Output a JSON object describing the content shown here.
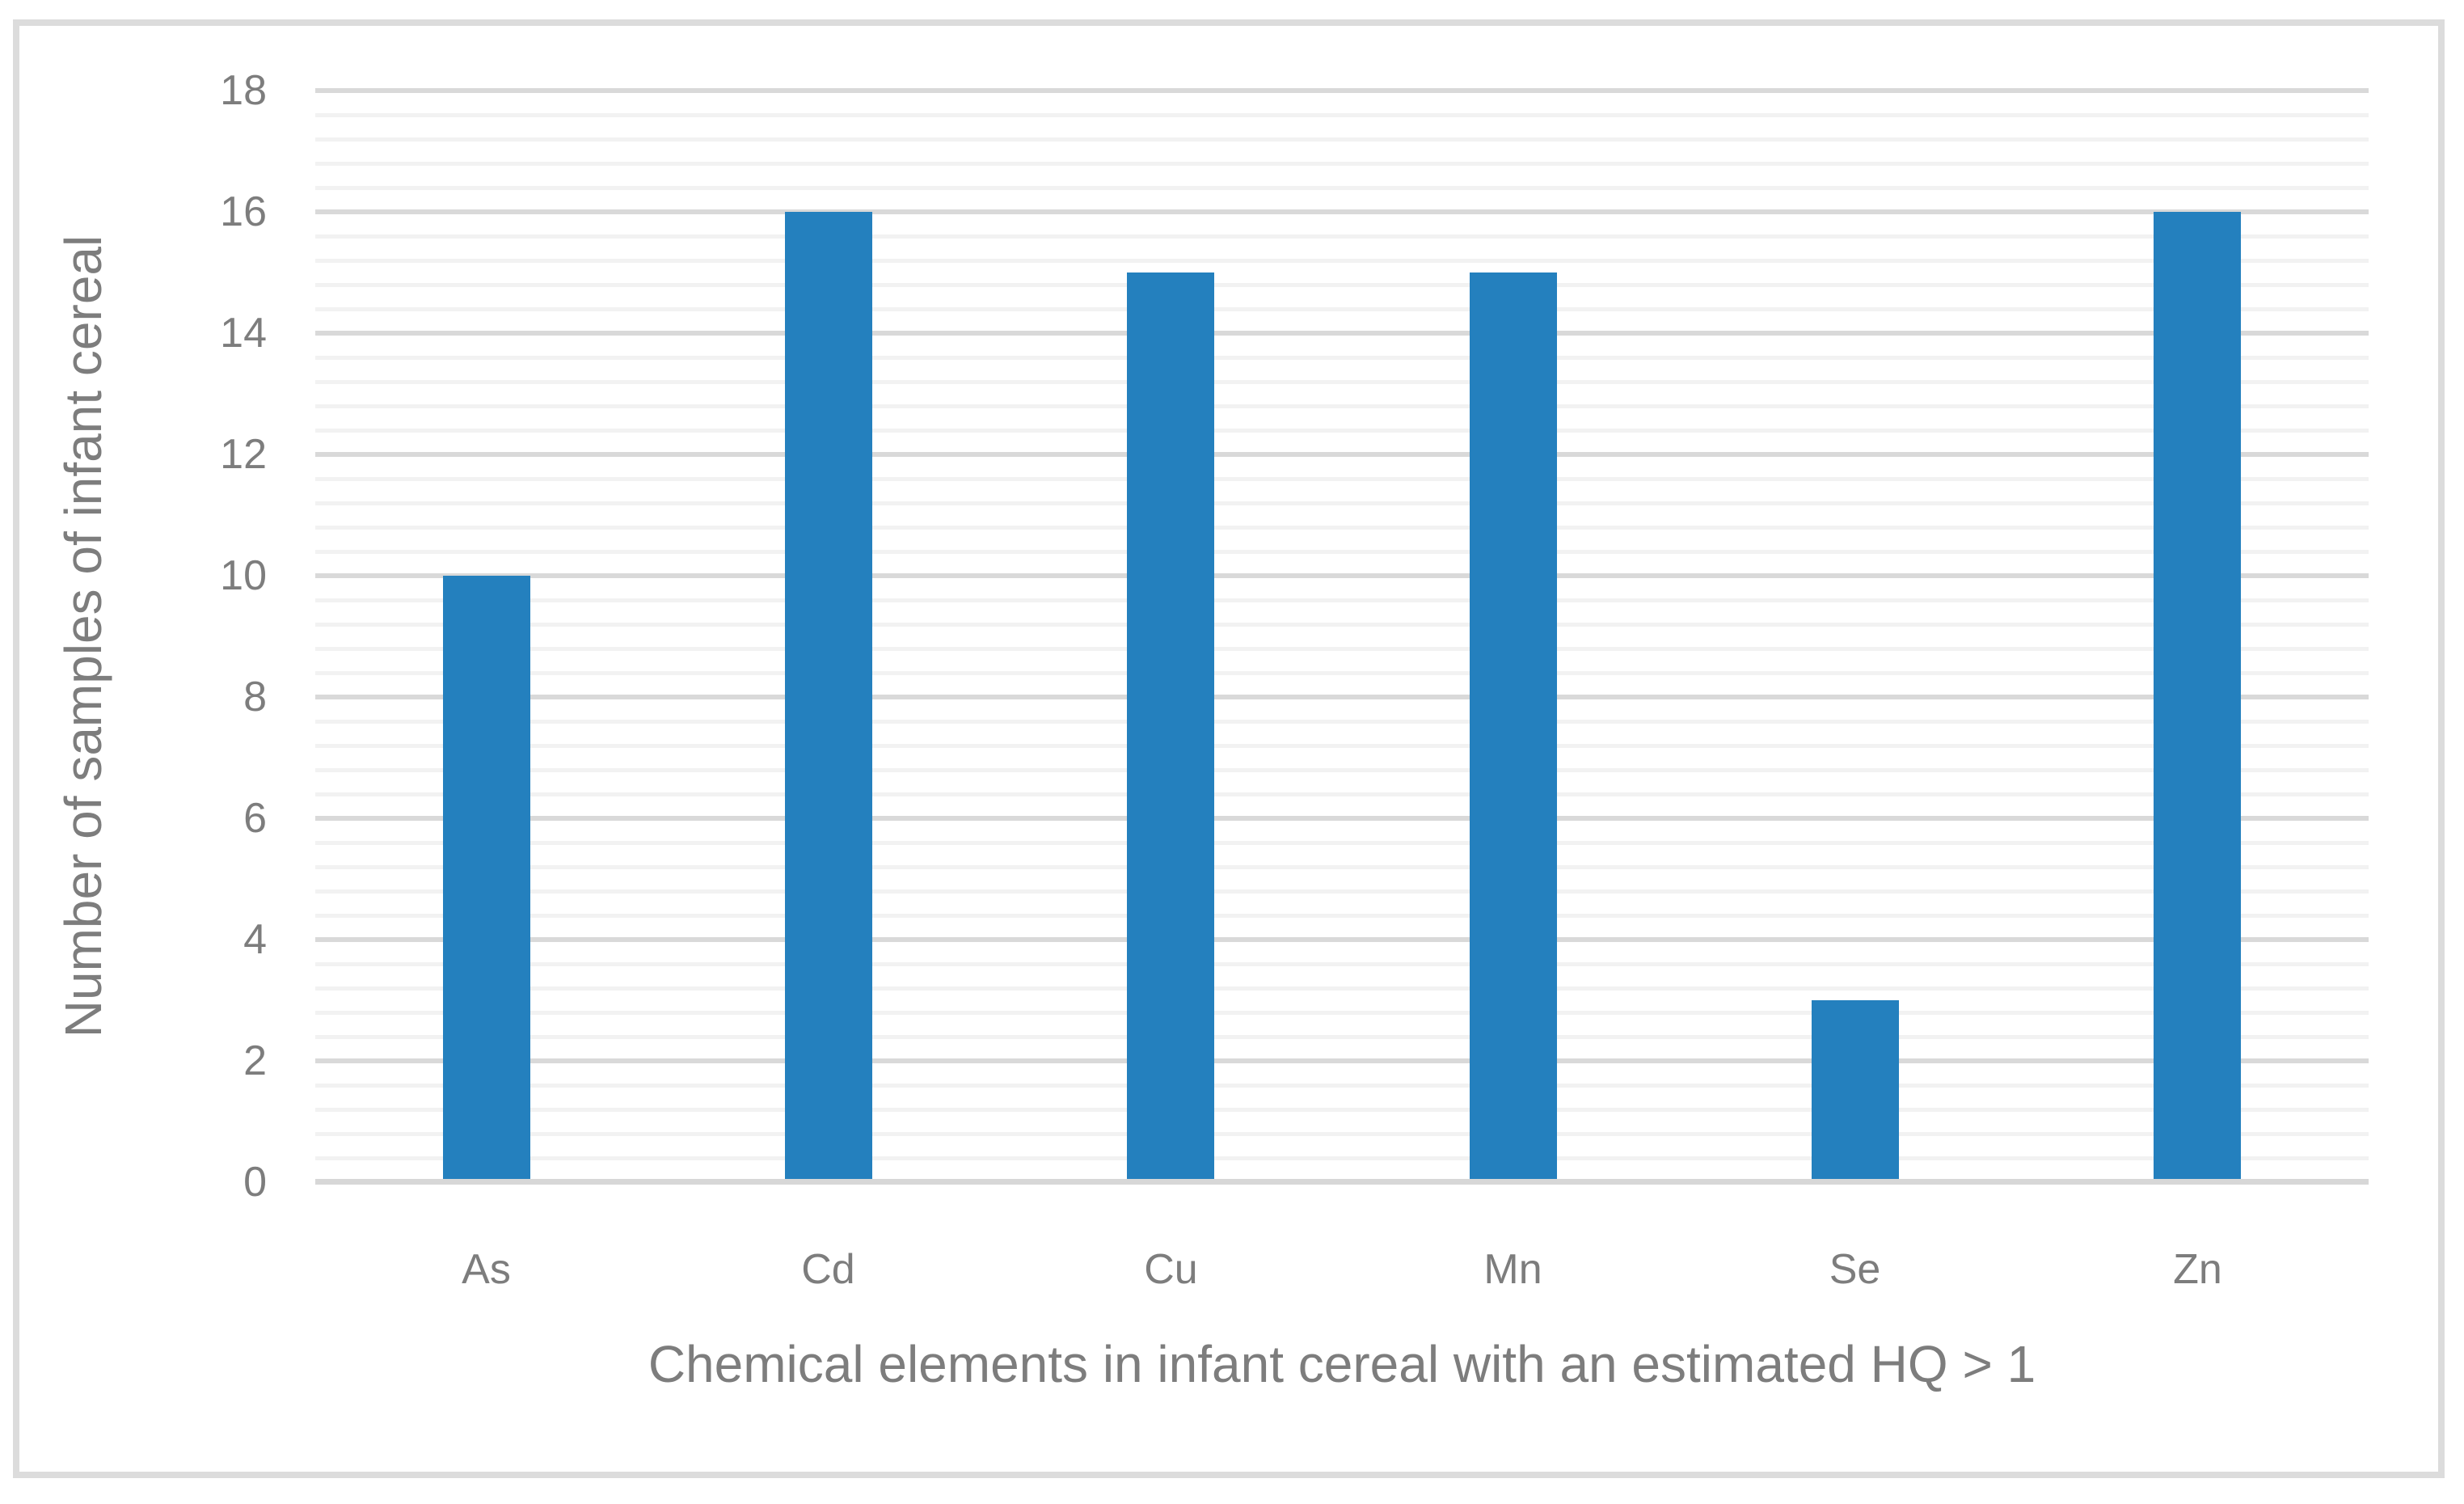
{
  "chart_data": {
    "type": "bar",
    "categories": [
      "As",
      "Cd",
      "Cu",
      "Mn",
      "Se",
      "Zn"
    ],
    "values": [
      10,
      16,
      15,
      15,
      3,
      16
    ],
    "title": "",
    "xlabel": "Chemical elements in infant cereal with an estimated HQ > 1",
    "ylabel": "Number of samples of infant cereal",
    "ylim": [
      0,
      18
    ],
    "y_major_step": 2,
    "y_minor_step": 0.4,
    "y_tick_labels": [
      "0",
      "2",
      "4",
      "6",
      "8",
      "10",
      "12",
      "14",
      "16",
      "18"
    ],
    "grid": "horizontal major and minor gridlines, on",
    "legend": "none",
    "bar_gap_ratio": 0.745
  },
  "colors": {
    "bar": "#2480be",
    "major_gridline": "#d9d9d9",
    "minor_gridline": "#f2f2f2",
    "axis_baseline": "#d7d7d7",
    "text": "#7d7d7d",
    "frame_border": "#dcdcdc",
    "background": "#ffffff"
  }
}
